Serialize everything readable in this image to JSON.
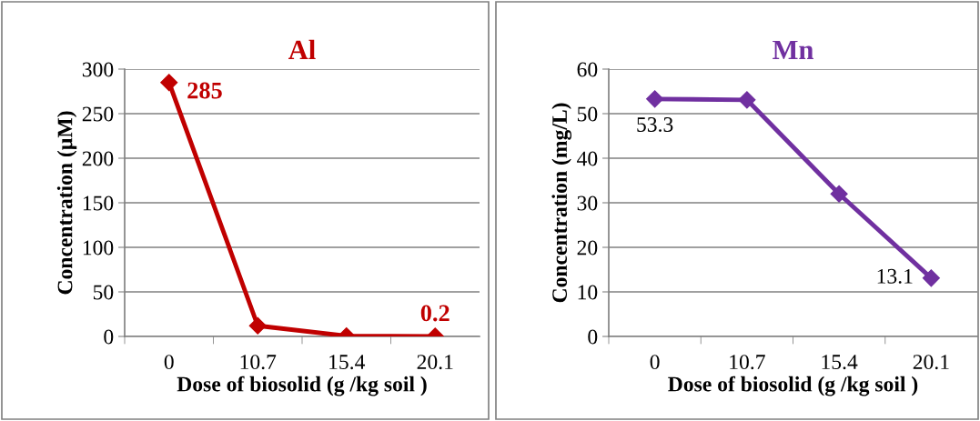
{
  "chart_data": [
    {
      "type": "line",
      "title": "Al",
      "xlabel": "Dose of biosolid (g /kg soil )",
      "ylabel": "Concentration (µM)",
      "categories": [
        "0",
        "10.7",
        "15.4",
        "20.1"
      ],
      "series": [
        {
          "color": "#c00000",
          "values": [
            285,
            12,
            0.5,
            0.2
          ]
        }
      ],
      "ylim": [
        0,
        300
      ],
      "yticks": [
        0,
        50,
        100,
        150,
        200,
        250,
        300
      ],
      "grid": "y",
      "marker": "diamond",
      "line_style": "solid",
      "legend": false,
      "annotations": [
        {
          "text": "285",
          "x": "0",
          "y": 285
        },
        {
          "text": "0.2",
          "x": "20.1",
          "y": 0.2
        }
      ]
    },
    {
      "type": "line",
      "title": "Mn",
      "xlabel": "Dose of biosolid (g /kg soil )",
      "ylabel": "Concentration (mg/L)",
      "categories": [
        "0",
        "10.7",
        "15.4",
        "20.1"
      ],
      "series": [
        {
          "color": "#7030a0",
          "values": [
            53.3,
            53.1,
            32,
            13.1
          ]
        }
      ],
      "ylim": [
        0,
        60
      ],
      "yticks": [
        0,
        10,
        20,
        30,
        40,
        50,
        60
      ],
      "grid": "y",
      "marker": "diamond",
      "line_style": "solid",
      "legend": false,
      "annotations": [
        {
          "text": "53.3",
          "x": "0",
          "y": 53.3
        },
        {
          "text": "13.1",
          "x": "20.1",
          "y": 13.1
        }
      ]
    }
  ]
}
